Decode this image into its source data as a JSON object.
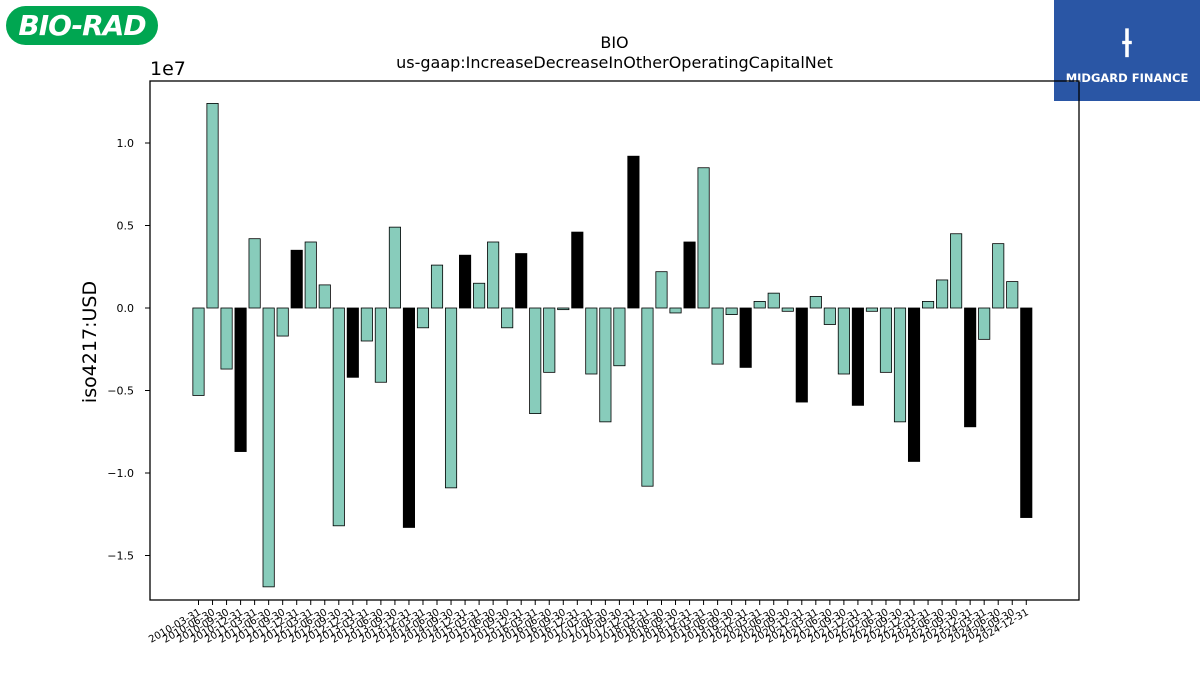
{
  "logos": {
    "left": "BIO-RAD",
    "right": "MIDGARD FINANCE"
  },
  "colors": {
    "bar_default": "#88ccbb",
    "bar_highlight": "#000000",
    "edge": "#000000",
    "left_logo_bg": "#00a651",
    "right_logo_bg": "#2a56a5"
  },
  "chart_data": {
    "type": "bar",
    "title": "BIO",
    "subtitle": "us-gaap:IncreaseDecreaseInOtherOperatingCapitalNet",
    "ylabel": "iso4217:USD",
    "xlabel": "",
    "y_multiplier_label": "1e7",
    "ylim": [
      -1.75,
      1.38
    ],
    "yticks": [
      1.0,
      0.5,
      0.0,
      -0.5,
      -1.0,
      -1.5
    ],
    "ytick_labels": [
      "1.0",
      "0.5",
      "0.0",
      "−0.5",
      "−1.0",
      "−1.5"
    ],
    "grid": false,
    "legend": "none",
    "categories": [
      "2010-03-31",
      "2010-06-30",
      "2010-09-30",
      "2010-12-31",
      "2011-03-31",
      "2011-06-30",
      "2011-09-30",
      "2011-12-31",
      "2012-03-31",
      "2012-06-30",
      "2012-09-30",
      "2012-12-31",
      "2013-03-31",
      "2013-06-30",
      "2013-09-30",
      "2013-12-31",
      "2014-03-31",
      "2014-06-30",
      "2014-09-30",
      "2014-12-31",
      "2015-03-31",
      "2015-06-30",
      "2015-09-30",
      "2015-12-31",
      "2016-03-31",
      "2016-06-30",
      "2016-09-30",
      "2016-12-31",
      "2017-03-31",
      "2017-06-30",
      "2017-09-30",
      "2017-12-31",
      "2018-03-31",
      "2018-06-30",
      "2018-09-30",
      "2018-12-31",
      "2019-03-31",
      "2019-06-30",
      "2019-09-30",
      "2019-12-31",
      "2020-03-31",
      "2020-06-30",
      "2020-09-30",
      "2020-12-31",
      "2021-03-31",
      "2021-06-30",
      "2021-09-30",
      "2021-12-31",
      "2022-03-31",
      "2022-06-30",
      "2022-09-30",
      "2022-12-31",
      "2023-03-31",
      "2023-06-30",
      "2023-09-30",
      "2023-12-31",
      "2024-03-31",
      "2024-06-30",
      "2024-09-30",
      "2024-12-31"
    ],
    "values": [
      -0.53,
      1.24,
      -0.37,
      -0.87,
      0.42,
      -1.69,
      -0.17,
      0.35,
      0.4,
      0.14,
      -1.32,
      -0.42,
      -0.2,
      -0.45,
      0.49,
      -1.33,
      -0.12,
      0.26,
      -1.09,
      0.32,
      0.15,
      0.4,
      -0.12,
      0.33,
      -0.64,
      -0.39,
      -0.01,
      0.46,
      -0.4,
      -0.69,
      -0.35,
      0.92,
      -1.08,
      0.22,
      -0.03,
      0.4,
      0.85,
      -0.34,
      -0.04,
      -0.36,
      0.04,
      0.09,
      -0.02,
      -0.57,
      0.07,
      -0.1,
      -0.4,
      -0.59,
      -0.02,
      -0.39,
      -0.69,
      -0.93,
      0.04,
      0.17,
      0.45,
      -0.72,
      -0.19,
      0.39,
      0.16,
      -1.27
    ],
    "highlight": [
      false,
      false,
      false,
      true,
      false,
      false,
      false,
      true,
      false,
      false,
      false,
      true,
      false,
      false,
      false,
      true,
      false,
      false,
      false,
      true,
      false,
      false,
      false,
      true,
      false,
      false,
      false,
      true,
      false,
      false,
      false,
      true,
      false,
      false,
      false,
      true,
      false,
      false,
      false,
      true,
      false,
      false,
      false,
      true,
      false,
      false,
      false,
      true,
      false,
      false,
      false,
      true,
      false,
      false,
      false,
      true,
      false,
      false,
      false,
      true
    ]
  }
}
